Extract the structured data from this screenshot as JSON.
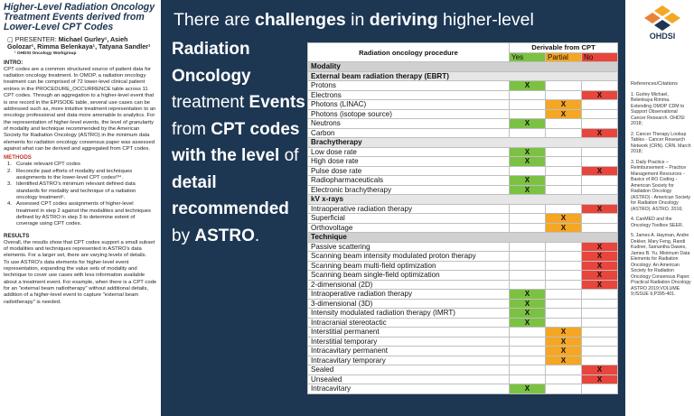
{
  "poster": {
    "title": "Higher-Level Radiation Oncology Treatment Events derived from Lower-Level CPT Codes",
    "presenter_label": "PRESENTER:",
    "authors": "Michael Gurley¹, Asieh Golozar¹, Rimma Belenkaya¹, Tatyana Sandler¹",
    "affiliation": "¹ OHDSI Oncology Workgroup",
    "intro": {
      "heading": "INTRO:",
      "text": "CPT codes are a common structured source of patient data for radiation oncology treatment. In OMOP, a radiation oncology treatment can be comprised of 72 lower-level clinical patient entries in the PROCEDURE_OCCURRENCE table across 11 CPT codes. Through an aggregation to a higher-level event that is one record in the EPISODE table, several use cases can be addressed such as, more intuitive treatment representation to an oncology professional and data more amenable to analytics. For the representation of higher-level events, the level of granularity of modality and technique recommended by the American Society for Radiation Oncology (ASTRO) in the minimum data elements for radiation oncology consensus paper was assessed against what can be derived and aggregated from CPT codes."
    },
    "methods": {
      "heading": "METHODS",
      "items": [
        {
          "n": "1.",
          "text": "Curate relevant CPT codes"
        },
        {
          "n": "2.",
          "text": "Reconcile past efforts of modality and techniques assignments to the lower-level CPT codes²³⁴."
        },
        {
          "n": "3.",
          "text": "Identified ASTRO's minimum relevant defined data standards for modality and technique of a radiation oncology treatment⁵."
        },
        {
          "n": "4.",
          "text": "Assessed CPT codes assignments of higher-level treatment in step 2 against the modalities and techniques defined by ASTRO in step 3 to determine extent of coverage using CPT codes."
        }
      ]
    },
    "results": {
      "heading": "RESULTS",
      "paragraphs": [
        "Overall, the results show that CPT codes support a small subset of modalities and techniques represented in ASTRO's data elements. For a larger set, there are varying levels of details.",
        "To use ASTRO's data elements for higher-level event representation, expanding the value sets of modality and technique to cover use cases with less information available about a treatment event. For example, when there is a CPT code for an \"external beam radiotherapy\" without additional details, addition of a higher-level event to capture \"external beam radiotherapy\" is needed."
      ]
    }
  },
  "headline": {
    "top": [
      {
        "text": "There are ",
        "bold": false
      },
      {
        "text": "challenges",
        "bold": true
      },
      {
        "text": " in ",
        "bold": false
      },
      {
        "text": "deriving",
        "bold": true
      },
      {
        "text": " higher-level",
        "bold": false
      }
    ],
    "side": [
      {
        "text": "Radiation Oncology ",
        "bold": true
      },
      {
        "text": "treatment ",
        "bold": false
      },
      {
        "text": "Events ",
        "bold": true
      },
      {
        "text": "from ",
        "bold": false
      },
      {
        "text": "CPT codes with the level ",
        "bold": true
      },
      {
        "text": "of ",
        "bold": false
      },
      {
        "text": "detail recommended ",
        "bold": true
      },
      {
        "text": "by ",
        "bold": false
      },
      {
        "text": "ASTRO",
        "bold": true
      },
      {
        "text": ".",
        "bold": false
      }
    ]
  },
  "table": {
    "procedure_header": "Radiation oncology procedure",
    "derivable_header": "Derivable from CPT",
    "subcolumns": [
      {
        "key": "yes",
        "label": "Yes",
        "color": "#7cc242"
      },
      {
        "key": "partial",
        "label": "Partial",
        "color": "#f5a623"
      },
      {
        "key": "no",
        "label": "No",
        "color": "#e8453c"
      }
    ],
    "rows": [
      {
        "section": "Modality"
      },
      {
        "group": "External beam radiation therapy (EBRT)"
      },
      {
        "label": "Protons",
        "yes": "X"
      },
      {
        "label": "Electrons",
        "no": "X"
      },
      {
        "label": "Photons (LINAC)",
        "partial": "X"
      },
      {
        "label": "Photons (isotope source)",
        "partial": "X"
      },
      {
        "label": "Neutrons",
        "yes": "X"
      },
      {
        "label": "Carbon",
        "no": "X"
      },
      {
        "group": "Brachytherapy"
      },
      {
        "label": "Low dose rate",
        "yes": "X"
      },
      {
        "label": "High dose rate",
        "yes": "X"
      },
      {
        "label": "Pulse dose rate",
        "no": "X"
      },
      {
        "label": "Radiopharmaceuticals",
        "yes": "X"
      },
      {
        "label": "Electronic brachytherapy",
        "yes": "X"
      },
      {
        "group": "kV x-rays"
      },
      {
        "label": "Intraoperative radiation therapy",
        "no": "X"
      },
      {
        "label": "Superficial",
        "partial": "X"
      },
      {
        "label": "Orthovoltage",
        "partial": "X"
      },
      {
        "section": "Technique"
      },
      {
        "label": "Passive scattering",
        "no": "X"
      },
      {
        "label": "Scanning beam intensity modulated proton therapy",
        "no": "X"
      },
      {
        "label": "Scanning beam multi-field optimization",
        "no": "X"
      },
      {
        "label": "Scanning beam single-field optimization",
        "no": "X"
      },
      {
        "label": "2-dimensional (2D)",
        "no": "X"
      },
      {
        "label": "Intraoperative radiation therapy",
        "yes": "X"
      },
      {
        "label": "3-dimensional (3D)",
        "yes": "X"
      },
      {
        "label": "Intensity modulated radiation therapy (IMRT)",
        "yes": "X"
      },
      {
        "label": "Intracranial stereotactic",
        "yes": "X"
      },
      {
        "label": "Interstitial permanent",
        "partial": "X"
      },
      {
        "label": "Interstitial temporary",
        "partial": "X"
      },
      {
        "label": "Intracavitary permanent",
        "partial": "X"
      },
      {
        "label": "Intracavitary temporary",
        "partial": "X"
      },
      {
        "label": "Sealed",
        "no": "X"
      },
      {
        "label": "Unsealed",
        "no": "X"
      },
      {
        "label": "Intracavitary",
        "yes": "X"
      }
    ]
  },
  "sidebar": {
    "logo_text": "OHDSI",
    "references_heading": "References/Citations",
    "references": [
      "1. Gurley Michael, Belenkaya Rimma. Extending OMOP CDM to Support Observational Cancer Research. OHDSI 2018;",
      "2. Cancer Therapy Lookup Tables - Cancer Research Network (CRN). CRN. March 2018;",
      "3. Daily Practice – Reimbursement – Practice Management Resources - Basics of RO Coding - American Society for Radiation Oncology (ASTRO) - American Society for Radiation Oncology (ASTRO). ASTRO. 2016;",
      "4. CanMED and the Oncology Toolbox SEER.",
      "5. James A. Hayman, Andre Dekker, Mary Feng, Randi Kudner, Samantha Dawes, James B. Yu. Minimum Data Elements for Radiation Oncology: An American Society for Radiation Oncology Consensus Paper. Practical Radiation Oncology ASTRO 2019;VOLUME 9;ISSUE 6;P395-401."
    ]
  }
}
